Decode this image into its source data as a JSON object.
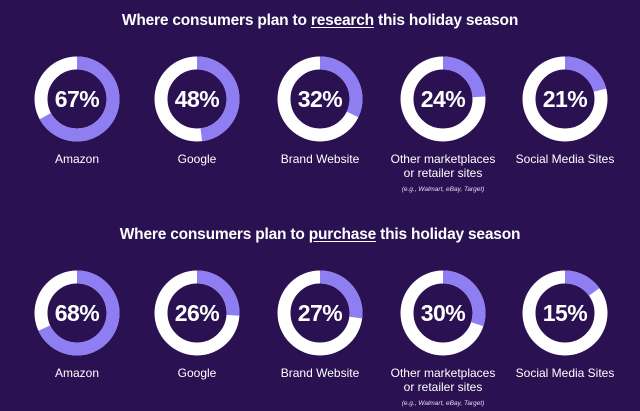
{
  "colors": {
    "background": "#2a1152",
    "ring_track": "#ffffff",
    "ring_fill": "#8f7df2",
    "text": "#ffffff"
  },
  "chart_data": [
    {
      "type": "donut",
      "title_parts": [
        "Where consumers plan to ",
        "research",
        " this holiday season"
      ],
      "categories": [
        "Amazon",
        "Google",
        "Brand Website",
        "Other marketplaces or retailer sites",
        "Social Media Sites"
      ],
      "values": [
        67,
        48,
        32,
        24,
        21
      ],
      "value_labels": [
        "67%",
        "48%",
        "32%",
        "24%",
        "21%"
      ],
      "label_lines": [
        [
          "Amazon"
        ],
        [
          "Google"
        ],
        [
          "Brand Website"
        ],
        [
          "Other marketplaces",
          "or retailer sites"
        ],
        [
          "Social Media Sites"
        ]
      ],
      "note": "(e.g., Walmart, eBay, Target)"
    },
    {
      "type": "donut",
      "title_parts": [
        "Where consumers plan to ",
        "purchase",
        " this holiday season"
      ],
      "categories": [
        "Amazon",
        "Google",
        "Brand Website",
        "Other marketplaces or retailer sites",
        "Social Media Sites"
      ],
      "values": [
        68,
        26,
        27,
        30,
        15
      ],
      "value_labels": [
        "68%",
        "26%",
        "27%",
        "30%",
        "15%"
      ],
      "label_lines": [
        [
          "Amazon"
        ],
        [
          "Google"
        ],
        [
          "Brand Website"
        ],
        [
          "Other marketplaces",
          "or retailer sites"
        ],
        [
          "Social Media Sites"
        ]
      ],
      "note": "(e.g., Walmart, eBay, Target)"
    }
  ]
}
